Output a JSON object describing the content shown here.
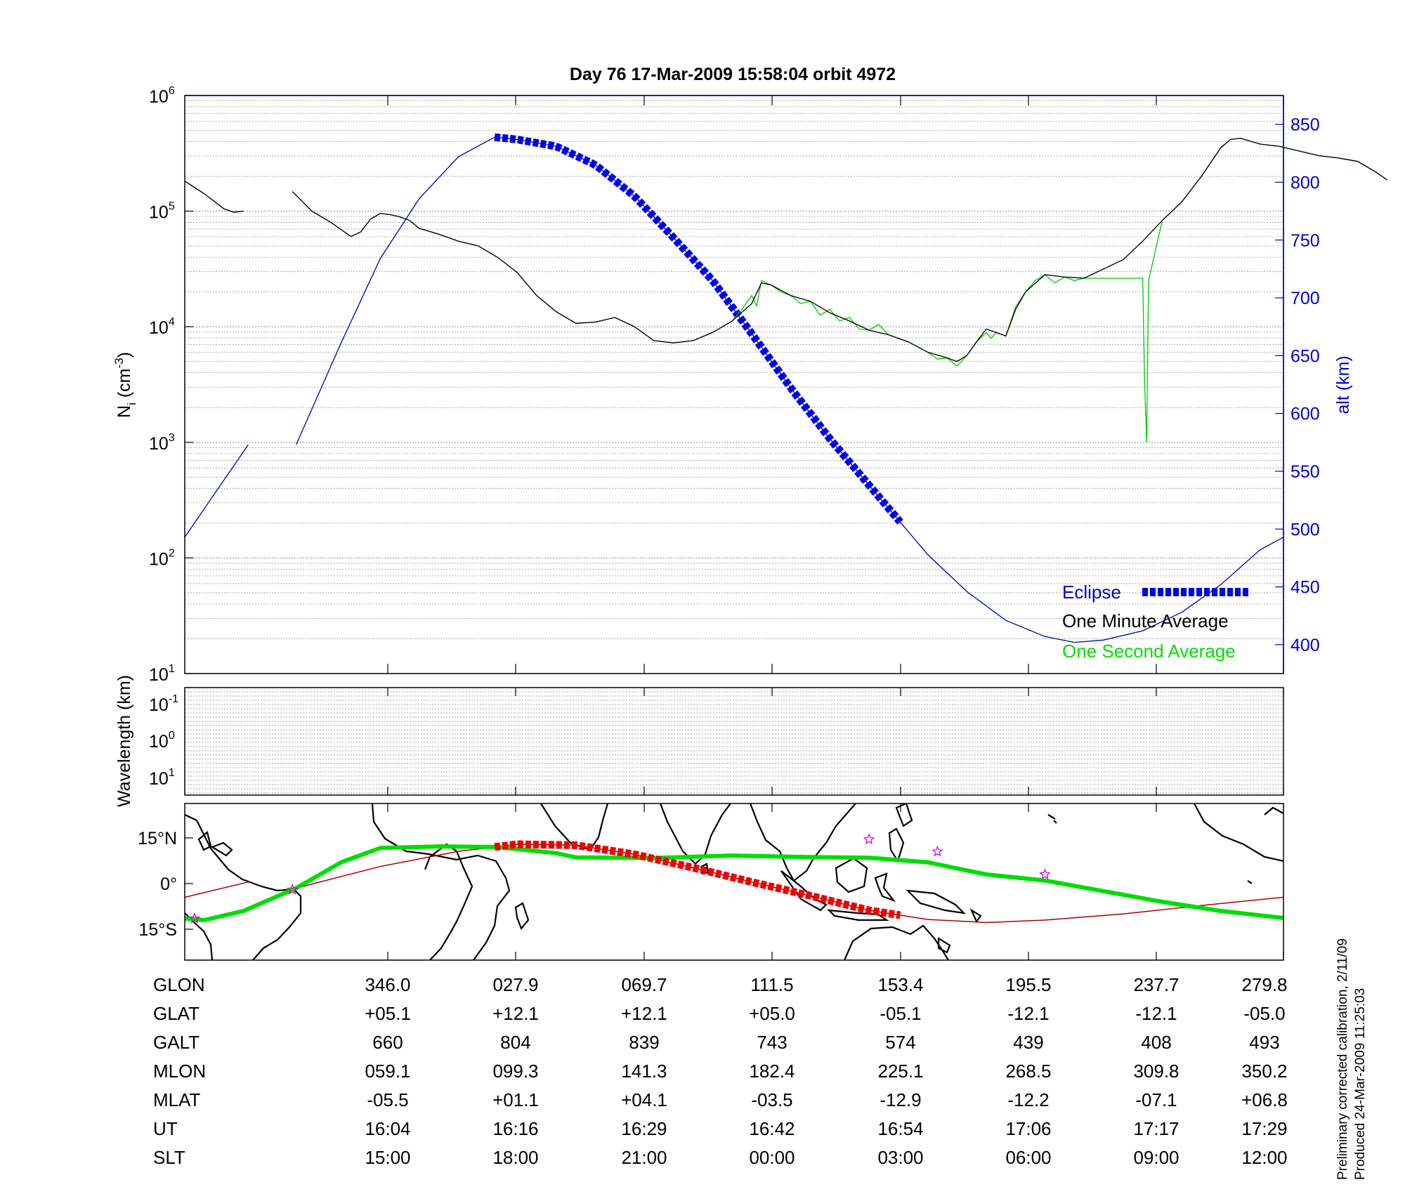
{
  "title": "Day 76  17-Mar-2009 15:58:04   orbit 4972",
  "colors": {
    "alt": "#0000aa",
    "eclipse": "#0000ee",
    "one_minute": "#000000",
    "one_second": "#00cc00",
    "track": "#00dd00",
    "eclipse_track": "#ee0000",
    "mag_equator": "#aa0000",
    "star": "#cc00cc"
  },
  "chart_data": [
    {
      "type": "line",
      "name": "ion-density-panel",
      "title": "Day 76  17-Mar-2009 15:58:04   orbit 4972",
      "ylabel": "N",
      "ylabel_sub": "i",
      "ylabel_unit": "(cm",
      "ylabel_unit_sup": "-3",
      "ylabel_unit_end": ")",
      "ylim_log10": [
        1,
        6
      ],
      "yticks": [
        {
          "base": "10",
          "exp": "1",
          "value": 1
        },
        {
          "base": "10",
          "exp": "2",
          "value": 2
        },
        {
          "base": "10",
          "exp": "3",
          "value": 3
        },
        {
          "base": "10",
          "exp": "4",
          "value": 4
        },
        {
          "base": "10",
          "exp": "5",
          "value": 5
        },
        {
          "base": "10",
          "exp": "6",
          "value": 6
        }
      ],
      "y2label": "alt (km)",
      "y2lim": [
        375,
        875
      ],
      "y2ticks": [
        "400",
        "450",
        "500",
        "550",
        "600",
        "650",
        "700",
        "750",
        "800",
        "850"
      ],
      "xlim_min": [
        0,
        86
      ],
      "series": [
        {
          "name": "One Minute Average",
          "points_min_log10": [
            [
              0,
              5.26
            ],
            [
              2,
              5.15
            ],
            [
              4,
              5.02
            ],
            [
              5,
              4.99
            ],
            [
              6,
              5.0
            ],
            null,
            [
              11,
              5.17
            ],
            [
              13,
              5.0
            ],
            [
              15,
              4.9
            ],
            [
              17,
              4.78
            ],
            [
              18,
              4.82
            ],
            [
              19,
              4.93
            ],
            [
              20,
              4.98
            ],
            [
              21,
              4.97
            ],
            [
              22,
              4.95
            ],
            [
              23,
              4.92
            ],
            [
              24,
              4.85
            ],
            [
              26,
              4.8
            ],
            [
              28,
              4.74
            ],
            [
              30,
              4.7
            ],
            [
              32,
              4.6
            ],
            [
              34,
              4.47
            ],
            [
              36,
              4.27
            ],
            [
              38,
              4.13
            ],
            [
              40,
              4.03
            ],
            [
              42,
              4.04
            ],
            [
              44,
              4.08
            ],
            [
              46,
              4.0
            ],
            [
              48,
              3.88
            ],
            [
              50,
              3.86
            ],
            [
              52,
              3.88
            ],
            [
              54,
              3.95
            ],
            [
              56,
              4.05
            ],
            [
              58,
              4.2
            ],
            [
              59,
              4.38
            ],
            [
              60,
              4.36
            ],
            [
              62,
              4.27
            ],
            [
              64,
              4.22
            ],
            [
              66,
              4.12
            ],
            [
              68,
              4.05
            ],
            [
              70,
              3.97
            ],
            [
              72,
              3.93
            ],
            [
              74,
              3.87
            ],
            [
              76,
              3.78
            ],
            [
              78,
              3.73
            ],
            [
              79,
              3.7
            ],
            [
              80,
              3.75
            ],
            [
              81,
              3.87
            ],
            [
              82,
              3.98
            ],
            [
              83,
              3.95
            ],
            [
              84,
              3.92
            ],
            [
              85,
              4.15
            ],
            [
              86,
              4.3
            ],
            [
              88,
              4.45
            ],
            [
              90,
              4.43
            ],
            [
              92,
              4.42
            ],
            [
              94,
              4.5
            ],
            [
              96,
              4.58
            ],
            [
              98,
              4.74
            ],
            [
              100,
              4.92
            ],
            [
              102,
              5.08
            ],
            [
              104,
              5.3
            ],
            [
              106,
              5.55
            ],
            [
              107,
              5.62
            ],
            [
              108,
              5.63
            ],
            [
              110,
              5.58
            ],
            [
              112,
              5.56
            ],
            [
              114,
              5.52
            ],
            [
              116,
              5.48
            ],
            [
              118,
              5.46
            ],
            [
              120,
              5.43
            ],
            [
              122,
              5.33
            ],
            [
              123,
              5.27
            ]
          ]
        },
        {
          "name": "One Second Average",
          "points_min_log10": [
            [
              0,
              5.26
            ],
            [
              2,
              5.15
            ],
            [
              4,
              5.02
            ],
            [
              5,
              4.99
            ],
            [
              6,
              5.0
            ],
            null,
            [
              11,
              5.17
            ],
            [
              13,
              5.0
            ],
            [
              15,
              4.9
            ],
            [
              17,
              4.78
            ],
            [
              18,
              4.82
            ],
            [
              19,
              4.93
            ],
            [
              20,
              4.98
            ],
            [
              21,
              4.97
            ],
            [
              22,
              4.95
            ],
            [
              23,
              4.92
            ],
            [
              24,
              4.85
            ],
            [
              26,
              4.8
            ],
            [
              28,
              4.74
            ],
            [
              30,
              4.7
            ],
            [
              32,
              4.6
            ],
            [
              34,
              4.47
            ],
            [
              36,
              4.27
            ],
            [
              38,
              4.13
            ],
            [
              40,
              4.03
            ],
            [
              42,
              4.04
            ],
            [
              44,
              4.08
            ],
            [
              46,
              4.0
            ],
            [
              48,
              3.88
            ],
            [
              50,
              3.86
            ],
            [
              52,
              3.88
            ],
            [
              54,
              3.95
            ],
            [
              56,
              4.05
            ],
            [
              57,
              4.15
            ],
            [
              58,
              4.27
            ],
            [
              58.5,
              4.18
            ],
            [
              59,
              4.4
            ],
            [
              60,
              4.36
            ],
            [
              61,
              4.3
            ],
            [
              62,
              4.27
            ],
            [
              63,
              4.2
            ],
            [
              64,
              4.22
            ],
            [
              65,
              4.1
            ],
            [
              66,
              4.15
            ],
            [
              67,
              4.05
            ],
            [
              68,
              4.08
            ],
            [
              69,
              3.98
            ],
            [
              70,
              3.97
            ],
            [
              71,
              4.02
            ],
            [
              72,
              3.93
            ],
            [
              74,
              3.87
            ],
            [
              76,
              3.78
            ],
            [
              77,
              3.72
            ],
            [
              78,
              3.73
            ],
            [
              79,
              3.66
            ],
            [
              80,
              3.75
            ],
            [
              81,
              3.87
            ],
            [
              82,
              3.95
            ],
            [
              82.5,
              3.9
            ],
            [
              83,
              3.95
            ],
            [
              84,
              3.92
            ],
            [
              85,
              4.17
            ],
            [
              86,
              4.3
            ],
            [
              87,
              4.4
            ],
            [
              88,
              4.45
            ],
            [
              89,
              4.38
            ],
            [
              90,
              4.43
            ],
            [
              91,
              4.4
            ],
            [
              92,
              4.42
            ],
            [
              98,
              4.42
            ],
            [
              98.2,
              3.5
            ],
            [
              98.4,
              3.0
            ],
            [
              98.6,
              4.4
            ],
            [
              100,
              4.92
            ],
            [
              102,
              5.08
            ],
            [
              104,
              5.3
            ],
            [
              106,
              5.55
            ],
            [
              107,
              5.62
            ],
            [
              108,
              5.63
            ],
            [
              110,
              5.58
            ],
            [
              112,
              5.56
            ],
            [
              114,
              5.52
            ],
            [
              116,
              5.48
            ],
            [
              118,
              5.46
            ],
            [
              120,
              5.43
            ],
            [
              122,
              5.33
            ],
            [
              123,
              5.27
            ]
          ]
        }
      ],
      "altitude_km_points": [
        [
          0,
          493
        ],
        [
          6.5,
          573
        ],
        null,
        [
          11.4,
          573
        ],
        [
          16,
          661
        ],
        [
          20,
          734
        ],
        [
          24,
          786
        ],
        [
          28,
          822
        ],
        [
          31.7,
          839
        ],
        [
          34,
          837
        ],
        [
          38,
          831
        ],
        [
          42,
          815
        ],
        [
          46,
          788
        ],
        [
          50,
          752
        ],
        [
          54,
          715
        ],
        [
          58,
          669
        ],
        [
          62,
          622
        ],
        [
          66,
          578
        ],
        [
          70,
          538
        ],
        [
          73.4,
          504
        ],
        [
          76,
          478
        ],
        [
          80,
          446
        ],
        [
          84,
          421
        ],
        [
          88,
          407
        ],
        [
          91,
          402
        ],
        [
          94,
          404
        ],
        [
          98,
          412
        ],
        [
          102,
          428
        ],
        [
          106,
          452
        ],
        [
          110,
          482
        ],
        [
          112.4,
          493
        ]
      ],
      "eclipse_segment_min": [
        31.7,
        73.4
      ],
      "legend": [
        {
          "label": "Eclipse",
          "color": "#0000cc"
        },
        {
          "label": "One Minute Average",
          "color": "#000000"
        },
        {
          "label": "One Second Average",
          "color": "#00dd00"
        }
      ]
    },
    {
      "type": "heatmap",
      "name": "wavelength-panel",
      "ylabel": "Wavelength (km)",
      "yticks": [
        {
          "base": "10",
          "exp": "-1"
        },
        {
          "base": "10",
          "exp": "0"
        },
        {
          "base": "10",
          "exp": "1"
        }
      ],
      "values": []
    },
    {
      "type": "line",
      "name": "orbit-track-map",
      "yticks": [
        "15°N",
        "0°",
        "15°S"
      ],
      "ylim_deg": [
        -25,
        25
      ],
      "xlim_min": [
        0,
        112.4
      ],
      "track_points_min_lat": [
        [
          0,
          -11.5
        ],
        [
          2,
          -12
        ],
        [
          6,
          -9
        ],
        [
          11.4,
          -1.5
        ],
        [
          16,
          7
        ],
        [
          20,
          11.7
        ],
        [
          26,
          12.2
        ],
        [
          32,
          12
        ],
        [
          38,
          10
        ],
        [
          40,
          8.6
        ],
        [
          48,
          8.4
        ],
        [
          56,
          9.2
        ],
        [
          64,
          8.7
        ],
        [
          70,
          8.5
        ],
        [
          76,
          7
        ],
        [
          82,
          3
        ],
        [
          88,
          1
        ],
        [
          94,
          -2.5
        ],
        [
          100,
          -6
        ],
        [
          106,
          -9
        ],
        [
          112.4,
          -11.3
        ]
      ],
      "mag_equator_points_min_lat": [
        [
          0,
          -4.5
        ],
        [
          6.5,
          0.5
        ],
        null,
        [
          11.4,
          -1.5
        ],
        [
          20,
          5.6
        ],
        [
          28,
          10.6
        ],
        [
          34,
          12.9
        ],
        [
          40,
          12.6
        ],
        [
          46,
          9.6
        ],
        [
          52,
          5.2
        ],
        [
          58,
          0.5
        ],
        [
          64,
          -4
        ],
        [
          70,
          -8.8
        ],
        [
          76,
          -11.8
        ],
        [
          82,
          -12.8
        ],
        [
          88,
          -12
        ],
        [
          96,
          -10
        ],
        [
          104,
          -7.2
        ],
        [
          112.4,
          -4.5
        ]
      ],
      "eclipse_track_min": [
        31.7,
        73.4
      ],
      "stars_min_lat": [
        [
          1,
          -11.5
        ],
        [
          11,
          -2
        ],
        [
          70,
          14.5
        ],
        [
          77,
          10.5
        ],
        [
          88,
          3
        ]
      ]
    }
  ],
  "table": {
    "rows": [
      {
        "label": "GLON",
        "values": [
          "346.0",
          "027.9",
          "069.7",
          "111.5",
          "153.4",
          "195.5",
          "237.7",
          "279.8"
        ]
      },
      {
        "label": "GLAT",
        "values": [
          "+05.1",
          "+12.1",
          "+12.1",
          "+05.0",
          "-05.1",
          "-12.1",
          "-12.1",
          "-05.0"
        ]
      },
      {
        "label": "GALT",
        "values": [
          "660",
          "804",
          "839",
          "743",
          "574",
          "439",
          "408",
          "493"
        ]
      },
      {
        "label": "MLON",
        "values": [
          "059.1",
          "099.3",
          "141.3",
          "182.4",
          "225.1",
          "268.5",
          "309.8",
          "350.2"
        ]
      },
      {
        "label": "MLAT",
        "values": [
          "-05.5",
          "+01.1",
          "+04.1",
          "-03.5",
          "-12.9",
          "-12.2",
          "-07.1",
          "+06.8"
        ]
      },
      {
        "label": "UT",
        "values": [
          "16:04",
          "16:16",
          "16:29",
          "16:42",
          "16:54",
          "17:06",
          "17:17",
          "17:29"
        ]
      },
      {
        "label": "SLT",
        "values": [
          "15:00",
          "18:00",
          "21:00",
          "00:00",
          "03:00",
          "06:00",
          "09:00",
          "12:00"
        ]
      }
    ]
  },
  "footnote": {
    "line1": "Preliminary corrected calibration, 2/11/09",
    "line2": "Produced 24-Mar-2009 11:25:03"
  }
}
